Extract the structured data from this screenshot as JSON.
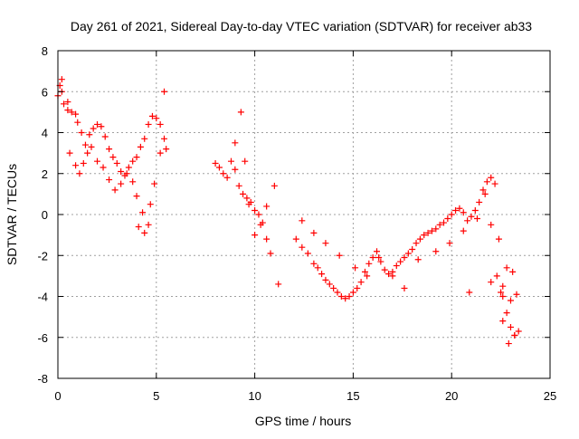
{
  "chart_data": {
    "type": "scatter",
    "title": "Day 261 of 2021, Sidereal Day-to-day VTEC variation (SDTVAR) for receiver ab33",
    "xlabel": "GPS time / hours",
    "ylabel": "SDTVAR / TECUs",
    "xlim": [
      0,
      25
    ],
    "ylim": [
      -8,
      8
    ],
    "xticks": [
      0,
      5,
      10,
      15,
      20,
      25
    ],
    "yticks": [
      -8,
      -6,
      -4,
      -2,
      0,
      2,
      4,
      6,
      8
    ],
    "xtick_labels": [
      "0",
      "5",
      "10",
      "15",
      "20",
      "25"
    ],
    "ytick_labels": [
      "-8",
      "-6",
      "-4",
      "-2",
      "0",
      "2",
      "4",
      "6",
      "8"
    ],
    "grid": true,
    "marker": "+",
    "series": [
      {
        "name": "SDTVAR ab33",
        "color": "#ff0000",
        "x": [
          0.0,
          0.1,
          0.2,
          0.3,
          0.5,
          0.7,
          0.9,
          1.0,
          1.2,
          1.4,
          1.6,
          1.8,
          2.0,
          2.2,
          2.4,
          2.6,
          2.8,
          3.0,
          3.2,
          3.4,
          3.6,
          3.8,
          4.0,
          4.2,
          4.4,
          4.6,
          4.8,
          5.0,
          5.2,
          5.4,
          0.6,
          0.9,
          1.1,
          1.3,
          1.5,
          1.7,
          2.0,
          2.3,
          2.6,
          2.9,
          3.2,
          3.5,
          3.8,
          4.0,
          4.3,
          4.6,
          4.9,
          5.2,
          5.4,
          0.2,
          0.5,
          4.1,
          4.4,
          4.7,
          5.5,
          8.0,
          8.2,
          8.4,
          8.6,
          8.8,
          9.0,
          9.2,
          9.4,
          9.6,
          9.8,
          10.0,
          10.2,
          10.4,
          10.6,
          10.8,
          9.0,
          9.3,
          9.5,
          9.7,
          10.0,
          10.3,
          10.6,
          11.0,
          11.2,
          12.1,
          12.4,
          12.7,
          13.0,
          13.2,
          13.4,
          13.6,
          13.8,
          14.0,
          14.2,
          14.4,
          14.6,
          14.8,
          15.0,
          15.2,
          15.4,
          15.6,
          15.8,
          16.0,
          16.2,
          16.4,
          16.6,
          16.8,
          17.0,
          17.2,
          17.4,
          17.6,
          17.8,
          18.0,
          18.2,
          18.4,
          18.6,
          18.8,
          19.0,
          19.2,
          19.4,
          19.6,
          19.8,
          20.0,
          20.2,
          20.4,
          20.6,
          20.8,
          21.0,
          21.2,
          21.4,
          21.6,
          21.8,
          22.0,
          22.2,
          22.4,
          22.6,
          22.8,
          23.0,
          23.2,
          23.4,
          12.4,
          13.0,
          13.6,
          14.3,
          15.1,
          15.7,
          16.3,
          17.0,
          17.6,
          18.3,
          19.2,
          19.9,
          20.6,
          21.3,
          22.0,
          22.6,
          23.1,
          21.7,
          22.0,
          22.3,
          22.6,
          22.9,
          23.2,
          20.9,
          22.5,
          22.8,
          23.0,
          23.3
        ],
        "y": [
          5.8,
          6.3,
          6.0,
          5.4,
          5.1,
          5.0,
          4.9,
          4.5,
          4.0,
          3.4,
          3.9,
          4.2,
          4.4,
          4.3,
          3.8,
          3.2,
          2.8,
          2.5,
          2.1,
          1.9,
          2.3,
          2.6,
          2.8,
          3.3,
          3.7,
          4.4,
          4.8,
          4.7,
          4.4,
          3.7,
          3.0,
          2.4,
          2.0,
          2.5,
          3.0,
          3.3,
          2.6,
          2.3,
          1.7,
          1.2,
          1.5,
          2.0,
          1.6,
          0.9,
          0.1,
          -0.5,
          1.5,
          3.0,
          6.0,
          6.6,
          5.5,
          -0.6,
          -0.9,
          0.5,
          3.2,
          2.5,
          2.3,
          2.0,
          1.8,
          2.6,
          2.2,
          1.4,
          1.0,
          0.8,
          0.6,
          0.2,
          0.0,
          -0.4,
          -1.2,
          -1.9,
          3.5,
          5.0,
          2.6,
          0.5,
          -1.0,
          -0.5,
          0.4,
          1.4,
          -3.4,
          -1.2,
          -1.6,
          -1.9,
          -2.4,
          -2.6,
          -2.9,
          -3.2,
          -3.4,
          -3.6,
          -3.8,
          -4.0,
          -4.1,
          -4.0,
          -3.8,
          -3.6,
          -3.3,
          -2.8,
          -2.4,
          -2.1,
          -1.8,
          -2.3,
          -2.7,
          -2.9,
          -2.8,
          -2.5,
          -2.3,
          -2.1,
          -1.9,
          -1.7,
          -1.4,
          -1.2,
          -1.0,
          -0.9,
          -0.8,
          -0.7,
          -0.5,
          -0.4,
          -0.2,
          0.0,
          0.2,
          0.3,
          0.1,
          -0.3,
          -0.1,
          0.2,
          0.6,
          1.2,
          1.6,
          1.8,
          1.5,
          -1.2,
          -3.5,
          -4.8,
          -5.5,
          -5.9,
          -5.7,
          -0.3,
          -0.9,
          -1.4,
          -2.0,
          -2.6,
          -3.0,
          -2.1,
          -3.0,
          -3.6,
          -2.2,
          -1.8,
          -1.4,
          -0.8,
          -0.2,
          -3.3,
          -4.0,
          -2.8,
          1.0,
          -0.5,
          -3.0,
          -5.2,
          -6.3,
          -5.9,
          -3.8,
          -3.8,
          -2.6,
          -4.2,
          -3.9
        ]
      }
    ]
  }
}
